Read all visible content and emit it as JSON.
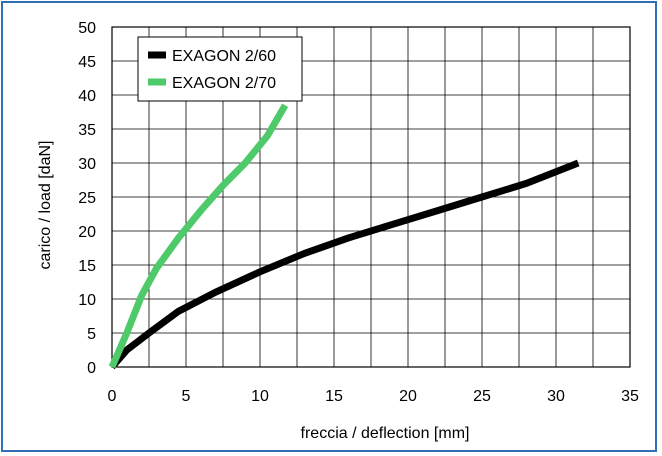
{
  "chart_data": {
    "type": "line",
    "xlabel": "freccia / deflection [mm]",
    "ylabel": "carico / load [daN]",
    "xlim": [
      0,
      35
    ],
    "ylim": [
      0,
      50
    ],
    "xticks": [
      0,
      5,
      10,
      15,
      20,
      25,
      30,
      35
    ],
    "yticks": [
      0,
      5,
      10,
      15,
      20,
      25,
      30,
      35,
      40,
      45,
      50
    ],
    "grid": true,
    "legend_position": "top-left",
    "series": [
      {
        "name": "EXAGON 2/60",
        "color": "#000000",
        "x": [
          0,
          1,
          2.5,
          4.5,
          7,
          10,
          13,
          16,
          19,
          22,
          25,
          28,
          31.5
        ],
        "y": [
          0,
          2.5,
          5,
          8.2,
          11,
          14,
          16.7,
          19,
          21,
          23,
          25,
          27,
          30
        ]
      },
      {
        "name": "EXAGON 2/70",
        "color": "#4fca6a",
        "x": [
          0,
          1,
          2,
          3,
          4.5,
          6,
          7.5,
          9,
          10.5,
          11.7
        ],
        "y": [
          0,
          5,
          10.5,
          14.5,
          19,
          23,
          26.7,
          30,
          34,
          38.5
        ]
      }
    ]
  }
}
